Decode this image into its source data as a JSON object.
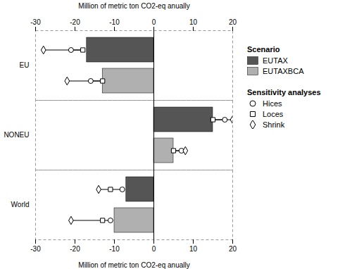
{
  "chart_data": {
    "type": "bar",
    "orientation": "horizontal",
    "categories": [
      "EU",
      "NONEU",
      "World"
    ],
    "series": [
      {
        "name": "EUTAX",
        "color": "#555555",
        "values": [
          -17.0,
          15.0,
          -7.0
        ],
        "sensitivity": [
          {
            "name": "Hices",
            "marker": "circle",
            "values": [
              -21.0,
              18.0,
              -8.0
            ]
          },
          {
            "name": "Loces",
            "marker": "square",
            "values": [
              -18.0,
              15.0,
              -11.0
            ]
          },
          {
            "name": "Shrink",
            "marker": "diamond",
            "values": [
              -28.0,
              20.0,
              -14.0
            ]
          }
        ]
      },
      {
        "name": "EUTAXBCA",
        "color": "#b0b0b0",
        "values": [
          -13.0,
          5.0,
          -10.0
        ],
        "sensitivity": [
          {
            "name": "Hices",
            "marker": "circle",
            "values": [
              -16.0,
              7.0,
              -11.0
            ]
          },
          {
            "name": "Loces",
            "marker": "square",
            "values": [
              -13.0,
              5.0,
              -13.0
            ]
          },
          {
            "name": "Shrink",
            "marker": "diamond",
            "values": [
              -22.0,
              8.0,
              -21.0
            ]
          }
        ]
      }
    ],
    "xlabel": "Million of metric ton CO2-eq anually",
    "top_xlabel": "Million of metric ton CO2-eq anually",
    "xlim": [
      -30,
      20
    ],
    "xticks": [
      -30,
      -20,
      -10,
      0,
      10,
      20
    ],
    "legend": "right",
    "legend_title": "Scenario",
    "sensitivity_title": "Sensitivity analyses",
    "grid": false
  }
}
